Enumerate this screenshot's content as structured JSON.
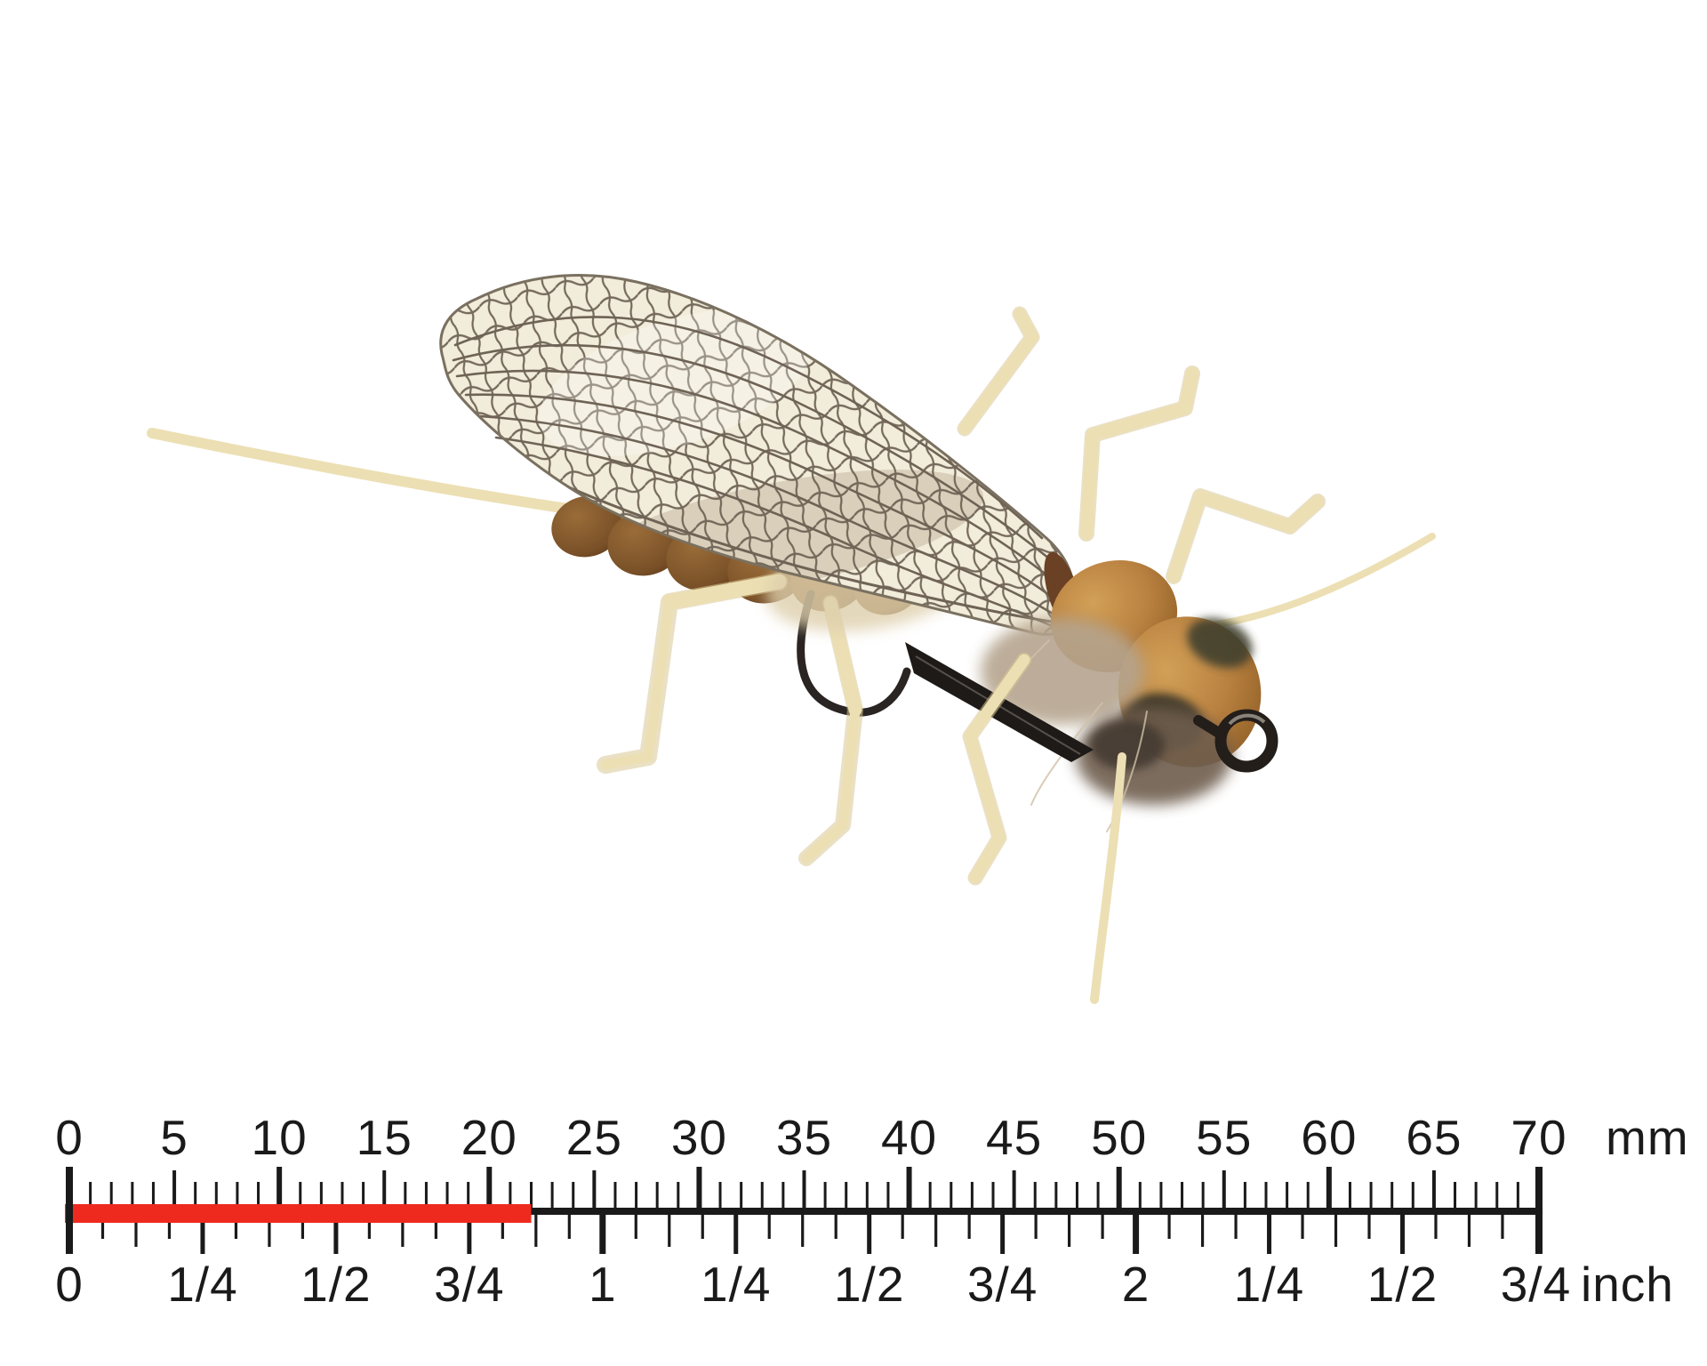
{
  "photo": {
    "subject": "stonefly dry fly lure, top view, tan foam head and thorax, netted translucent wing, cream rubber legs, black hook",
    "palette": {
      "membrane": "#f2ecda",
      "vein": "#6e6355",
      "body_brown": "#7c5329",
      "thorax_tan": "#bd8443",
      "leg_cream": "#ecdfb3",
      "fuzz_grey": "#b5a48e",
      "fuzz_dark": "#6e5d4d",
      "hook_black": "#231e1a",
      "marker_red": "#ee2a1f",
      "label_ink": "#1a1a1a"
    }
  },
  "ruler": {
    "mm_unit": "mm",
    "inch_unit": "inch",
    "mm_labels": [
      "0",
      "5",
      "10",
      "15",
      "20",
      "25",
      "30",
      "35",
      "40",
      "45",
      "50",
      "55",
      "60",
      "65",
      "70"
    ],
    "inch_labels": [
      "0",
      "1/4",
      "1/2",
      "3/4",
      "1",
      "1/4",
      "1/2",
      "3/4",
      "2",
      "1/4",
      "1/2",
      "3/4"
    ],
    "marker": {
      "color": "#ee2a1f",
      "from_mm": 0,
      "to_mm": 22
    }
  }
}
